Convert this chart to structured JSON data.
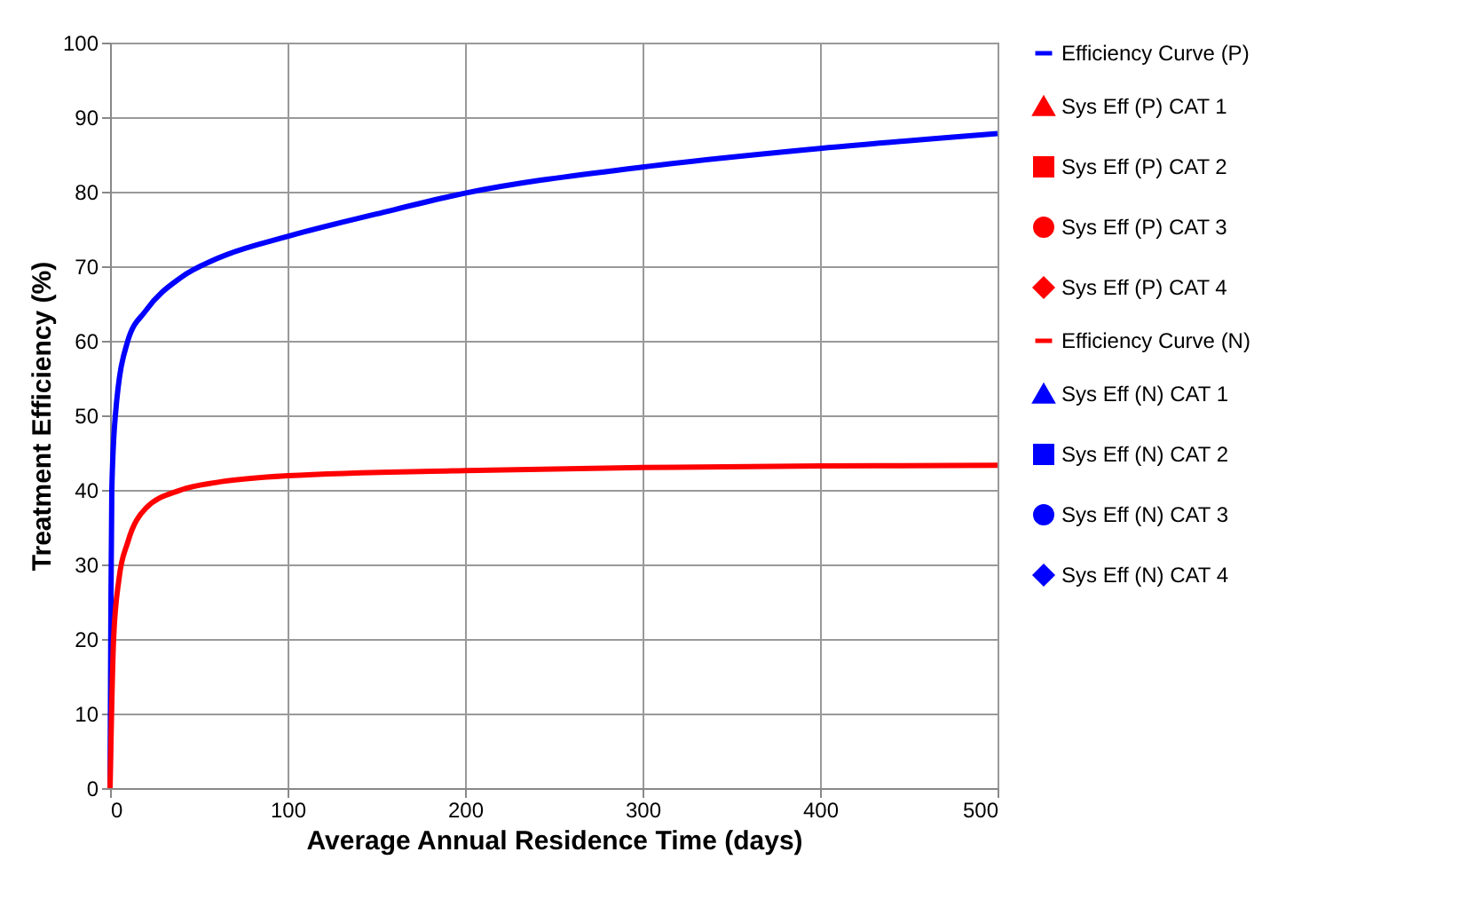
{
  "chart_data": {
    "type": "line",
    "xlabel": "Average Annual Residence Time (days)",
    "ylabel": "Treatment Efficiency (%)",
    "xlim": [
      0,
      500
    ],
    "xticks": [
      0,
      100,
      200,
      300,
      400,
      500
    ],
    "ylim": [
      0,
      100
    ],
    "yticks": [
      0,
      10,
      20,
      30,
      40,
      50,
      60,
      70,
      80,
      90,
      100
    ],
    "grid": true,
    "legend": "right",
    "series": [
      {
        "name": "Efficiency Curve (P)",
        "type": "line",
        "color": "#0000ff",
        "x": [
          0,
          0.5,
          1,
          3,
          10,
          20,
          40,
          60,
          100,
          150,
          200,
          300,
          400,
          500
        ],
        "values": [
          0,
          25,
          40,
          50,
          60,
          64,
          68.5,
          71,
          74,
          77,
          79.8,
          83.3,
          85.8,
          87.8
        ]
      },
      {
        "name": "Sys Eff (P) CAT 1",
        "type": "scatter",
        "marker": "triangle",
        "color": "#ff0000"
      },
      {
        "name": "Sys Eff (P) CAT 2",
        "type": "scatter",
        "marker": "square",
        "color": "#ff0000"
      },
      {
        "name": "Sys Eff (P) CAT 3",
        "type": "scatter",
        "marker": "circle",
        "color": "#ff0000"
      },
      {
        "name": "Sys Eff (P) CAT 4",
        "type": "scatter",
        "marker": "diamond",
        "color": "#ff0000"
      },
      {
        "name": "Efficiency Curve (N)",
        "type": "line",
        "color": "#ff0000",
        "x": [
          0,
          2,
          5,
          10,
          20,
          40,
          60,
          100,
          200,
          300,
          400,
          500
        ],
        "values": [
          0,
          20,
          28,
          33,
          37.5,
          40,
          41,
          41.9,
          42.6,
          43,
          43.2,
          43.3
        ]
      },
      {
        "name": "Sys Eff (N) CAT 1",
        "type": "scatter",
        "marker": "triangle",
        "color": "#0000ff"
      },
      {
        "name": "Sys Eff (N) CAT 2",
        "type": "scatter",
        "marker": "square",
        "color": "#0000ff"
      },
      {
        "name": "Sys Eff (N) CAT 3",
        "type": "scatter",
        "marker": "circle",
        "color": "#0000ff"
      },
      {
        "name": "Sys Eff (N) CAT 4",
        "type": "scatter",
        "marker": "diamond",
        "color": "#0000ff"
      }
    ]
  }
}
